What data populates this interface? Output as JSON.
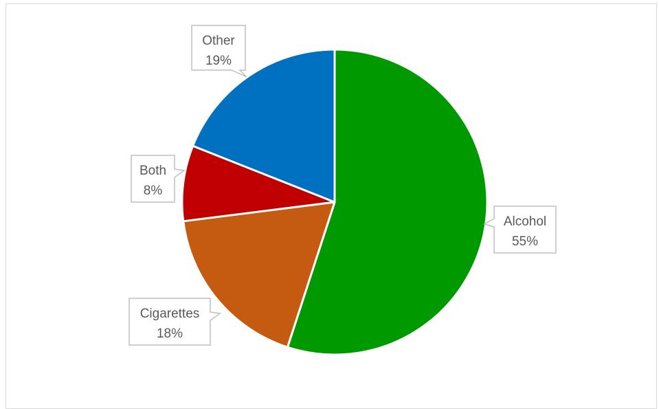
{
  "chart_data": {
    "type": "pie",
    "categories": [
      "Alcohol",
      "Cigarettes",
      "Both",
      "Other"
    ],
    "values": [
      55,
      18,
      8,
      19
    ],
    "value_labels": [
      "55%",
      "18%",
      "8%",
      "19%"
    ],
    "colors": [
      "#009900",
      "#C55A11",
      "#C00000",
      "#0070C0"
    ],
    "title": "",
    "legend": "none",
    "data_labels": "callouts with category name and percentage"
  }
}
